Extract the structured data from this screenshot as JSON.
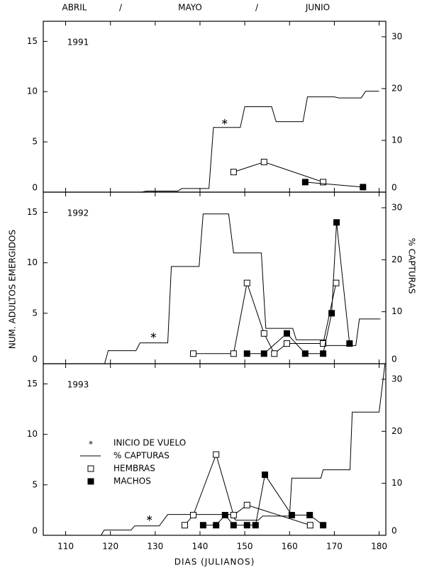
{
  "header": {
    "months": [
      "ABRIL",
      "MAYO",
      "JUNIO"
    ],
    "separators": [
      "/",
      "/"
    ]
  },
  "chart_data": [
    {
      "type": "line",
      "title": "1991",
      "xlim": [
        105,
        181.5
      ],
      "xticks": [
        110,
        120,
        130,
        140,
        150,
        160,
        170,
        180
      ],
      "ylim": [
        0,
        17
      ],
      "yticks": [
        0,
        5,
        10,
        15
      ],
      "y2lim": [
        0,
        33
      ],
      "y2ticks": [
        0,
        10,
        20,
        30
      ],
      "series": [
        {
          "style": "asterisk",
          "color": "#000000",
          "x": [
            145.5
          ],
          "values": [
            7.0
          ]
        },
        {
          "style": "line",
          "axis": "y2",
          "color": "#000000",
          "x": [
            105,
            127,
            128,
            135,
            136,
            142,
            143,
            149,
            150,
            156,
            157,
            163,
            164,
            170,
            171,
            176,
            177,
            180
          ],
          "values": [
            0,
            0,
            0.2,
            0.2,
            0.7,
            0.7,
            12.5,
            12.5,
            16.5,
            16.5,
            13.6,
            13.6,
            18.4,
            18.4,
            18.2,
            18.2,
            19.5,
            19.5
          ]
        },
        {
          "style": "open-square",
          "color": "#000000",
          "x": [
            147.5,
            154.3,
            167.5
          ],
          "values": [
            2,
            3,
            1
          ]
        },
        {
          "style": "filled-square",
          "color": "#000000",
          "x": [
            163.5,
            176.4
          ],
          "values": [
            1,
            0.5
          ]
        }
      ]
    },
    {
      "type": "line",
      "title": "1992",
      "xlim": [
        105,
        181.5
      ],
      "xticks": [
        110,
        120,
        130,
        140,
        150,
        160,
        170,
        180
      ],
      "ylim": [
        0,
        17
      ],
      "yticks": [
        0,
        5,
        10,
        15
      ],
      "y2lim": [
        0,
        33
      ],
      "y2ticks": [
        0,
        10,
        20,
        30
      ],
      "ylabel": "NUM. ADULTOS EMERGIDOS",
      "y2label": "% CAPTURAS",
      "series": [
        {
          "style": "asterisk",
          "color": "#000000",
          "x": [
            129.6
          ],
          "values": [
            2.8
          ]
        },
        {
          "style": "line",
          "axis": "y2",
          "color": "#000000",
          "x": [
            105,
            118.7,
            119.5,
            125.7,
            126.6,
            132.8,
            133.6,
            139.8,
            140.7,
            146.4,
            147.5,
            153.7,
            154.7,
            160.7,
            161.5,
            168,
            168.1,
            174.8,
            175.6,
            180.3
          ],
          "values": [
            0,
            0,
            2.5,
            2.5,
            4.0,
            4.0,
            18.7,
            18.7,
            28.8,
            28.8,
            21.3,
            21.3,
            6.8,
            6.8,
            4.6,
            4.6,
            3.5,
            3.5,
            8.6,
            8.6
          ]
        },
        {
          "style": "open-square",
          "color": "#000000",
          "x": [
            138.5,
            147.5,
            150.5,
            154.3,
            156.6,
            159.4,
            167.5,
            170.4
          ],
          "values": [
            1,
            1,
            8,
            3,
            1,
            2,
            2,
            8
          ]
        },
        {
          "style": "filled-square",
          "color": "#000000",
          "x": [
            150.5,
            154.3,
            159.4,
            163.5,
            167.5,
            169.4,
            170.5,
            173.4
          ],
          "values": [
            1,
            1,
            3,
            1,
            1,
            5,
            14,
            2
          ]
        }
      ]
    },
    {
      "type": "line",
      "title": "1993",
      "xlim": [
        105,
        181.5
      ],
      "xticks": [
        110,
        120,
        130,
        140,
        150,
        160,
        170,
        180
      ],
      "ylim": [
        0,
        17
      ],
      "yticks": [
        0,
        5,
        10,
        15
      ],
      "y2lim": [
        0,
        33
      ],
      "y2ticks": [
        0,
        10,
        20,
        30
      ],
      "xlabel": "DIAS (JULIANOS)",
      "series": [
        {
          "name": "INICIO DE VUELO",
          "style": "asterisk",
          "color": "#000000",
          "x": [
            128.7
          ],
          "values": [
            1.7
          ]
        },
        {
          "name": "% CAPTURAS",
          "style": "line",
          "axis": "y2",
          "color": "#000000",
          "x": [
            105,
            117.9,
            118.6,
            124.6,
            125.4,
            130.9,
            132.8,
            147,
            148,
            153,
            154,
            160,
            160.5,
            167,
            167.5,
            173.5,
            174,
            180,
            181.3
          ],
          "values": [
            0,
            0,
            1.0,
            1.0,
            1.8,
            1.8,
            4.0,
            4.0,
            2.9,
            2.9,
            3.7,
            3.7,
            11.0,
            11.0,
            12.6,
            12.6,
            23.7,
            23.7,
            32.9
          ]
        },
        {
          "name": "HEMBRAS",
          "style": "open-square",
          "color": "#000000",
          "x": [
            136.6,
            138.5,
            143.6,
            147.5,
            150.5,
            164.6
          ],
          "values": [
            1,
            2,
            8,
            2,
            3,
            1
          ]
        },
        {
          "name": "MACHOS",
          "style": "filled-square",
          "color": "#000000",
          "x": [
            140.7,
            143.6,
            145.6,
            147.5,
            150.5,
            152.4,
            154.5,
            160.5,
            164.5,
            167.5
          ],
          "values": [
            1,
            1,
            2,
            1,
            1,
            1,
            6,
            2,
            2,
            1
          ]
        }
      ]
    }
  ]
}
